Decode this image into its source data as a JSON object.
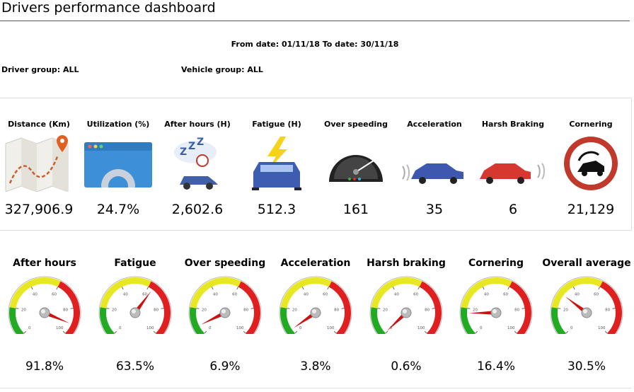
{
  "header": {
    "title": "Drivers performance dashboard",
    "dates": "From date: 01/11/18  To date: 30/11/18",
    "driver_group": "Driver group: ALL",
    "vehicle_group": "Vehicle group: ALL"
  },
  "kpis": [
    {
      "label": "Distance (Km)",
      "value": "327,906.9",
      "icon": "map-icon"
    },
    {
      "label": "Utilization (%)",
      "value": "24.7%",
      "icon": "gear-window-icon"
    },
    {
      "label": "After hours (H)",
      "value": "2,602.6",
      "icon": "sleep-car-icon"
    },
    {
      "label": "Fatigue (H)",
      "value": "512.3",
      "icon": "lightning-car-icon"
    },
    {
      "label": "Over speeding",
      "value": "161",
      "icon": "speedometer-icon"
    },
    {
      "label": "Acceleration",
      "value": "35",
      "icon": "accelerating-car-icon"
    },
    {
      "label": "Harsh Braking",
      "value": "6",
      "icon": "braking-car-icon"
    },
    {
      "label": "Cornering",
      "value": "21,129",
      "icon": "cornering-sign-icon"
    }
  ],
  "gauges": [
    {
      "label": "After hours",
      "value": "91.8%",
      "percent": 91.8
    },
    {
      "label": "Fatigue",
      "value": "63.5%",
      "percent": 63.5
    },
    {
      "label": "Over speeding",
      "value": "6.9%",
      "percent": 6.9
    },
    {
      "label": "Acceleration",
      "value": "3.8%",
      "percent": 3.8
    },
    {
      "label": "Harsh braking",
      "value": "0.6%",
      "percent": 0.6
    },
    {
      "label": "Cornering",
      "value": "16.4%",
      "percent": 16.4
    },
    {
      "label": "Overall average",
      "value": "30.5%",
      "percent": 30.5
    }
  ],
  "gauge_ticks": [
    "0",
    "20",
    "40",
    "60",
    "80",
    "100"
  ],
  "colors": {
    "green": "#22aa22",
    "yellow": "#e8e822",
    "red": "#e02020",
    "needle": "#cc1111"
  }
}
